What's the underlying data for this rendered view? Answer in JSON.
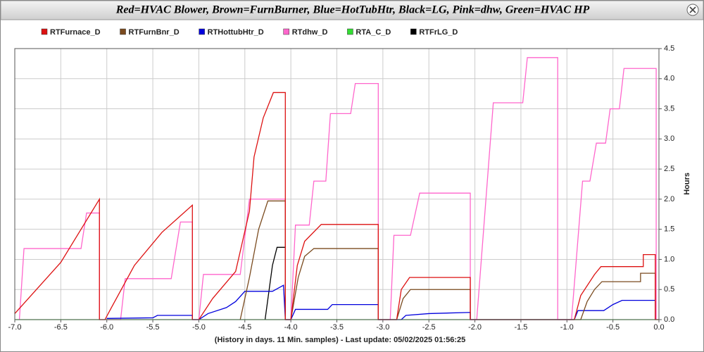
{
  "chart_data": {
    "type": "line",
    "title": "Red=HVAC Blower, Brown=FurnBurner, Blue=HotTubHtr, Black=LG, Pink=dhw, Green=HVAC HP",
    "x_label": "(History in days. 11 Min. samples) - Last update: 05/02/2025 01:56:25",
    "y_label": "Hours",
    "xlim": [
      -7.0,
      0.0
    ],
    "xticks": [
      {
        "value": -7.0,
        "label": "-7.0"
      },
      -6.5,
      {
        "value": -6.0,
        "label": "-6.0"
      },
      -5.5,
      {
        "value": -5.0,
        "label": "-5.0"
      },
      -4.5,
      {
        "value": -4.0,
        "label": "-4.0"
      },
      -3.5,
      {
        "value": -3.0,
        "label": "-3.0"
      },
      -2.5,
      {
        "value": -2.0,
        "label": "-2.0"
      },
      -1.5,
      {
        "value": -1.0,
        "label": "-1.0"
      },
      -0.5,
      {
        "value": 0.0,
        "label": "0.0"
      }
    ],
    "ylim": [
      0.0,
      4.5
    ],
    "yticks": [
      {
        "value": 0.0,
        "label": "0.0"
      },
      0.5,
      {
        "value": 1.0,
        "label": "1.0"
      },
      1.5,
      {
        "value": 2.0,
        "label": "2.0"
      },
      2.5,
      {
        "value": 3.0,
        "label": "3.0"
      },
      3.5,
      {
        "value": 4.0,
        "label": "4.0"
      },
      4.5
    ],
    "grid": true,
    "series": [
      {
        "name": "RTFurnace_D",
        "color": "#dd1111",
        "x": [
          -7.0,
          -6.5,
          -6.2,
          -6.08,
          -6.08,
          -6.02,
          -5.95,
          -5.7,
          -5.4,
          -5.07,
          -5.07,
          -5.0,
          -4.85,
          -4.6,
          -4.45,
          -4.4,
          -4.3,
          -4.19,
          -4.06,
          -4.06,
          -4.0,
          -3.93,
          -3.85,
          -3.67,
          -3.05,
          -3.05,
          -2.85,
          -2.8,
          -2.71,
          -2.05,
          -2.05,
          -0.92,
          -0.85,
          -0.7,
          -0.63,
          -0.17,
          -0.17,
          -0.04,
          -0.04,
          0.0
        ],
        "values": [
          0.1,
          0.95,
          1.7,
          2.0,
          0,
          0,
          0.2,
          0.9,
          1.45,
          1.9,
          0,
          0,
          0.35,
          0.8,
          1.8,
          2.7,
          3.35,
          3.77,
          3.77,
          0,
          0,
          0.9,
          1.3,
          1.58,
          1.58,
          0,
          0,
          0.5,
          0.7,
          0.7,
          0,
          0,
          0.4,
          0.75,
          0.88,
          0.88,
          1.08,
          1.08,
          0,
          0
        ]
      },
      {
        "name": "RTFurnBnr_D",
        "color": "#7a4a1e",
        "x": [
          -4.55,
          -4.45,
          -4.35,
          -4.25,
          -4.06,
          -4.06,
          -4.0,
          -3.92,
          -3.85,
          -3.75,
          -3.05,
          -3.05,
          -2.85,
          -2.78,
          -2.7,
          -2.05,
          -2.05,
          -0.85,
          -0.78,
          -0.7,
          -0.62,
          -0.2,
          -0.2,
          -0.04,
          -0.04
        ],
        "values": [
          0,
          0.7,
          1.5,
          1.97,
          1.97,
          0,
          0,
          0.7,
          1.05,
          1.18,
          1.18,
          0,
          0,
          0.35,
          0.5,
          0.5,
          0,
          0,
          0.3,
          0.5,
          0.63,
          0.63,
          0.77,
          0.77,
          0
        ]
      },
      {
        "name": "RTHottubHtr_D",
        "color": "#0000dd",
        "x": [
          -6.0,
          -5.5,
          -5.45,
          -5.07,
          -5.07,
          -5.0,
          -4.9,
          -4.7,
          -4.6,
          -4.5,
          -4.2,
          -4.08,
          -4.06,
          -4.0,
          -3.95,
          -3.6,
          -3.55,
          -3.05,
          -3.05,
          -2.8,
          -2.75,
          -2.5,
          -2.05,
          -2.05,
          -0.92,
          -0.88,
          -0.6,
          -0.5,
          -0.4,
          -0.04,
          -0.04
        ],
        "values": [
          0.02,
          0.03,
          0.07,
          0.07,
          0,
          0,
          0.1,
          0.2,
          0.3,
          0.47,
          0.47,
          0.57,
          0,
          0,
          0.17,
          0.17,
          0.25,
          0.25,
          0,
          0,
          0.07,
          0.1,
          0.12,
          0,
          0,
          0.15,
          0.15,
          0.25,
          0.32,
          0.32,
          0
        ]
      },
      {
        "name": "RTdhw_D",
        "color": "#ff66cc",
        "x": [
          -6.95,
          -6.9,
          -6.28,
          -6.22,
          -6.08,
          -6.08,
          -5.85,
          -5.8,
          -5.3,
          -5.2,
          -5.07,
          -5.07,
          -5.0,
          -4.95,
          -4.55,
          -4.45,
          -4.06,
          -4.06,
          -4.0,
          -3.95,
          -3.8,
          -3.75,
          -3.62,
          -3.57,
          -3.35,
          -3.3,
          -3.05,
          -3.05,
          -2.92,
          -2.88,
          -2.7,
          -2.6,
          -2.05,
          -2.05,
          -1.98,
          -1.8,
          -1.48,
          -1.43,
          -1.1,
          -1.1,
          -0.95,
          -0.83,
          -0.75,
          -0.68,
          -0.58,
          -0.53,
          -0.43,
          -0.38,
          -0.03,
          -0.03
        ],
        "values": [
          0,
          1.18,
          1.18,
          1.77,
          1.77,
          0,
          0,
          0.68,
          0.68,
          1.62,
          1.62,
          0,
          0,
          0.75,
          0.75,
          2.0,
          2.0,
          0,
          0,
          1.57,
          1.57,
          2.3,
          2.3,
          3.42,
          3.42,
          3.92,
          3.92,
          0,
          0,
          1.4,
          1.4,
          2.1,
          2.1,
          0,
          0,
          3.6,
          3.6,
          4.35,
          4.35,
          0,
          0,
          2.3,
          2.3,
          2.93,
          2.93,
          3.5,
          3.5,
          4.17,
          4.17,
          0
        ]
      },
      {
        "name": "RTA_C_D",
        "color": "#33dd33",
        "x": [
          -7.0,
          0.0
        ],
        "values": [
          0,
          0
        ]
      },
      {
        "name": "RTFrLG_D",
        "color": "#000000",
        "x": [
          -4.28,
          -4.2,
          -4.15,
          -4.06,
          -4.06
        ],
        "values": [
          0,
          0.9,
          1.2,
          1.2,
          0
        ]
      }
    ]
  }
}
